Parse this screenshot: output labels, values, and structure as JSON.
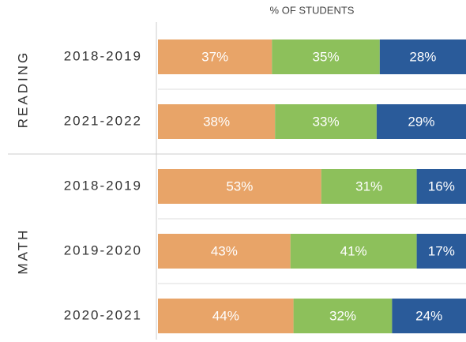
{
  "chart_data": {
    "type": "stacked-bar-horizontal",
    "x_label": "% OF STUDENTS",
    "groups": [
      {
        "label": "READING",
        "categories": [
          "2018-2019",
          "2021-2022"
        ]
      },
      {
        "label": "MATH",
        "categories": [
          "2018-2019",
          "2019-2020",
          "2020-2021"
        ]
      }
    ],
    "xlim": [
      0,
      100
    ],
    "series": [
      {
        "color": "#e8a468",
        "values": [
          37,
          38,
          53,
          43,
          44
        ],
        "value_labels": [
          "37%",
          "38%",
          "53%",
          "43%",
          "44%"
        ]
      },
      {
        "color": "#8dc05b",
        "values": [
          35,
          33,
          31,
          41,
          32
        ],
        "value_labels": [
          "35%",
          "33%",
          "31%",
          "41%",
          "32%"
        ]
      },
      {
        "color": "#2a5b9a",
        "values": [
          28,
          29,
          16,
          17,
          24
        ],
        "value_labels": [
          "28%",
          "29%",
          "16%",
          "17%",
          "24%"
        ]
      }
    ]
  }
}
